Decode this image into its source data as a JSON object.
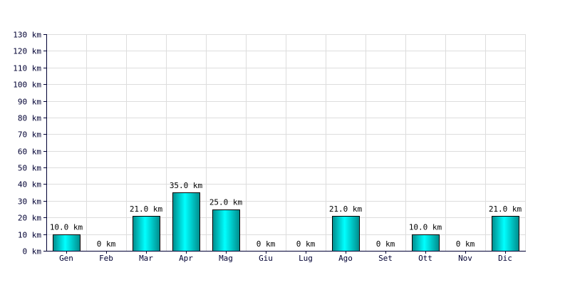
{
  "chart_data": {
    "type": "bar",
    "title": "",
    "xlabel": "",
    "ylabel": "",
    "categories": [
      "Gen",
      "Feb",
      "Mar",
      "Apr",
      "Mag",
      "Giu",
      "Lug",
      "Ago",
      "Set",
      "Ott",
      "Nov",
      "Dic"
    ],
    "values": [
      10,
      0,
      21,
      35,
      25,
      0,
      0,
      21,
      0,
      10,
      0,
      21
    ],
    "data_labels": [
      "10.0 km",
      "0 km",
      "21.0 km",
      "35.0 km",
      "25.0 km",
      "0 km",
      "0 km",
      "21.0 km",
      "0 km",
      "10.0 km",
      "0 km",
      "21.0 km"
    ],
    "ylim": [
      0,
      130
    ],
    "y_ticks": [
      0,
      10,
      20,
      30,
      40,
      50,
      60,
      70,
      80,
      90,
      100,
      110,
      120,
      130
    ],
    "y_tick_labels": [
      "0 km",
      "10 km",
      "20 km",
      "30 km",
      "40 km",
      "50 km",
      "60 km",
      "70 km",
      "80 km",
      "90 km",
      "100 km",
      "110 km",
      "120 km",
      "130 km"
    ],
    "grid": true,
    "colors": {
      "bar_light": "#00ffff",
      "bar_dark": "#008b8b",
      "bar_stroke": "#000000",
      "grid": "#dddddd",
      "axis": "#000033"
    }
  }
}
